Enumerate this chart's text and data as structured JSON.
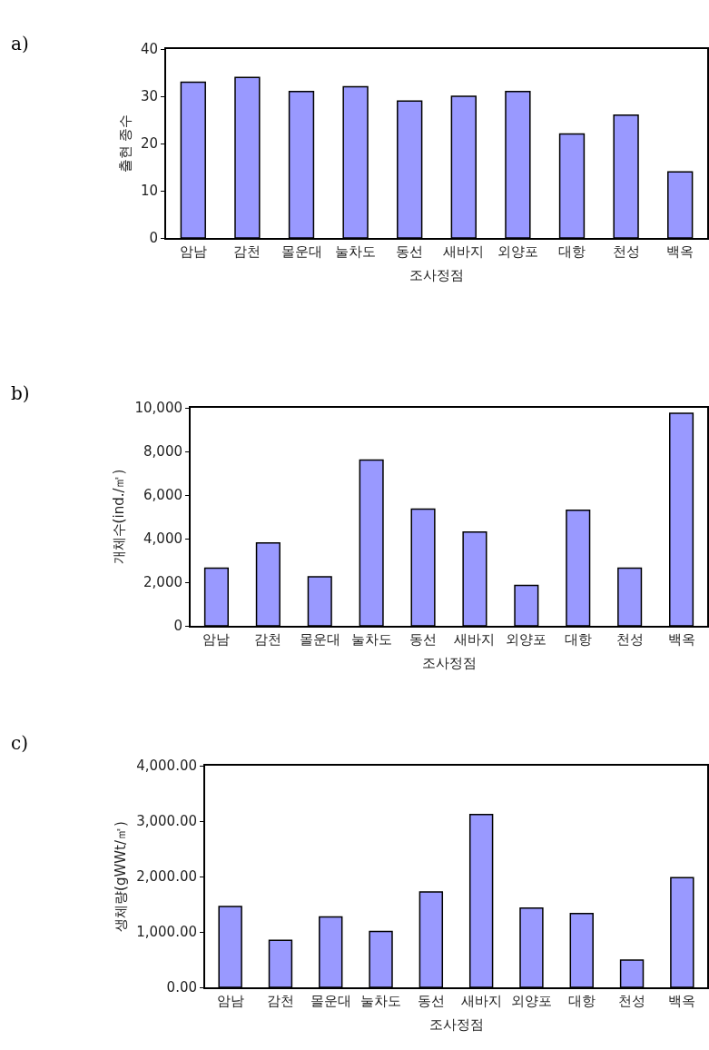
{
  "chart_data": [
    {
      "type": "bar",
      "annotations": [
        "a)"
      ],
      "xlabel": "조사정점",
      "ylabel": "출현 종수",
      "categories": [
        "암남",
        "감천",
        "몰운대",
        "눌차도",
        "동선",
        "새바지",
        "외양포",
        "대항",
        "천성",
        "백옥"
      ],
      "values": [
        33,
        34,
        31,
        32,
        29,
        30,
        31,
        22,
        26,
        14
      ],
      "color": "#9999ff",
      "ylim": [
        0,
        40
      ],
      "yticks": [
        0,
        10,
        20,
        30,
        40
      ],
      "grid": false
    },
    {
      "type": "bar",
      "annotations": [
        "b)"
      ],
      "xlabel": "조사정점",
      "ylabel": "개체수(ind./㎡)",
      "categories": [
        "암남",
        "감천",
        "몰운대",
        "눌차도",
        "동선",
        "새바지",
        "외양포",
        "대항",
        "천성",
        "백옥"
      ],
      "values": [
        2650,
        3800,
        2250,
        7600,
        5350,
        4300,
        1850,
        5300,
        2650,
        9750
      ],
      "color": "#9999ff",
      "ylim": [
        0,
        10000
      ],
      "yticks": [
        0,
        {
          "value": 2000,
          "label": "2,000"
        },
        {
          "value": 4000,
          "label": "4,000"
        },
        {
          "value": 6000,
          "label": "6,000"
        },
        {
          "value": 8000,
          "label": "8,000"
        },
        {
          "value": 10000,
          "label": "10,000"
        }
      ],
      "grid": false
    },
    {
      "type": "bar",
      "annotations": [
        "c)"
      ],
      "xlabel": "조사정점",
      "ylabel": "생체량(gWWt/㎡)",
      "categories": [
        "암남",
        "감천",
        "몰운대",
        "눌차도",
        "동선",
        "새바지",
        "외양포",
        "대항",
        "천성",
        "백옥"
      ],
      "values": [
        1460,
        850,
        1270,
        1010,
        1720,
        3120,
        1430,
        1330,
        490,
        1980
      ],
      "color": "#9999ff",
      "ylim": [
        0,
        4000
      ],
      "yticks": [
        {
          "value": 0,
          "label": "0.00"
        },
        {
          "value": 1000,
          "label": "1,000.00"
        },
        {
          "value": 2000,
          "label": "2,000.00"
        },
        {
          "value": 3000,
          "label": "3,000.00"
        },
        {
          "value": 4000,
          "label": "4,000.00"
        }
      ],
      "grid": false
    }
  ]
}
